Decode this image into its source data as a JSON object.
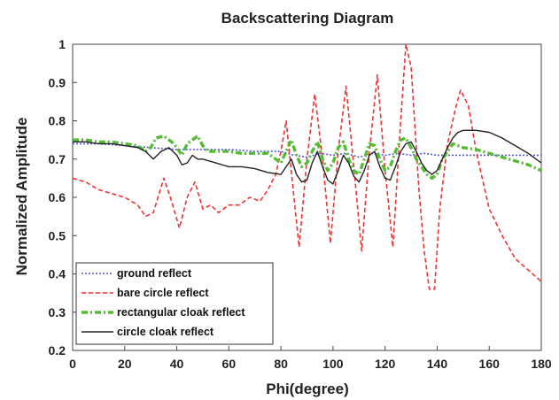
{
  "chart_data": {
    "type": "line",
    "title": "Backscattering Diagram",
    "xlabel": "Phi(degree)",
    "ylabel": "Normalized Amplitude",
    "xlim": [
      0,
      180
    ],
    "ylim": [
      0.2,
      1.0
    ],
    "xticks": [
      0,
      20,
      40,
      60,
      80,
      100,
      120,
      140,
      160,
      180
    ],
    "yticks": [
      0.2,
      0.3,
      0.4,
      0.5,
      0.6,
      0.7,
      0.8,
      0.9,
      1
    ],
    "grid": false,
    "legend_position": "bottom-left",
    "series": [
      {
        "name": "ground reflect",
        "color": "#5555dd",
        "style": "dotted",
        "x": [
          0,
          10,
          20,
          30,
          40,
          50,
          60,
          70,
          80,
          85,
          90,
          95,
          100,
          105,
          110,
          115,
          120,
          125,
          130,
          135,
          140,
          150,
          160,
          170,
          180
        ],
        "y": [
          0.74,
          0.74,
          0.735,
          0.73,
          0.725,
          0.725,
          0.725,
          0.72,
          0.72,
          0.71,
          0.705,
          0.715,
          0.71,
          0.715,
          0.705,
          0.715,
          0.71,
          0.715,
          0.71,
          0.715,
          0.71,
          0.71,
          0.71,
          0.71,
          0.71
        ]
      },
      {
        "name": "bare circle reflect",
        "color": "#ee3333",
        "style": "dashed",
        "x": [
          0,
          5,
          10,
          15,
          20,
          25,
          28,
          31,
          35,
          38,
          41,
          44,
          47,
          50,
          53,
          56,
          60,
          64,
          68,
          72,
          75,
          78,
          80,
          82,
          85,
          87,
          90,
          93,
          96,
          99,
          102,
          105,
          108,
          111,
          114,
          117,
          120,
          123,
          126,
          128,
          130,
          133,
          135,
          137,
          139,
          141,
          144,
          147,
          149,
          152,
          155,
          160,
          165,
          170,
          175,
          180
        ],
        "y": [
          0.65,
          0.64,
          0.62,
          0.61,
          0.6,
          0.58,
          0.55,
          0.56,
          0.65,
          0.59,
          0.52,
          0.6,
          0.64,
          0.57,
          0.58,
          0.56,
          0.58,
          0.58,
          0.6,
          0.59,
          0.62,
          0.66,
          0.72,
          0.8,
          0.6,
          0.47,
          0.7,
          0.87,
          0.7,
          0.48,
          0.72,
          0.89,
          0.68,
          0.46,
          0.72,
          0.92,
          0.67,
          0.47,
          0.8,
          1.0,
          0.94,
          0.62,
          0.46,
          0.36,
          0.36,
          0.57,
          0.74,
          0.83,
          0.88,
          0.84,
          0.72,
          0.57,
          0.5,
          0.44,
          0.41,
          0.38
        ]
      },
      {
        "name": "rectangular cloak reflect",
        "color": "#55bb33",
        "style": "dash-dot",
        "x": [
          0,
          5,
          10,
          15,
          20,
          25,
          28,
          30,
          32,
          35,
          38,
          40,
          42,
          44,
          46,
          48,
          50,
          52,
          55,
          60,
          65,
          70,
          75,
          78,
          80,
          82,
          84,
          86,
          88,
          90,
          92,
          94,
          96,
          98,
          100,
          102,
          104,
          106,
          108,
          110,
          112,
          114,
          116,
          118,
          120,
          122,
          124,
          126,
          128,
          130,
          132,
          134,
          136,
          138,
          140,
          142,
          144,
          146,
          148,
          150,
          155,
          160,
          165,
          170,
          175,
          180
        ],
        "y": [
          0.75,
          0.75,
          0.745,
          0.745,
          0.74,
          0.735,
          0.72,
          0.73,
          0.755,
          0.76,
          0.745,
          0.73,
          0.71,
          0.74,
          0.75,
          0.76,
          0.735,
          0.72,
          0.72,
          0.72,
          0.715,
          0.715,
          0.715,
          0.7,
          0.69,
          0.72,
          0.75,
          0.71,
          0.68,
          0.69,
          0.72,
          0.745,
          0.7,
          0.67,
          0.69,
          0.73,
          0.745,
          0.7,
          0.67,
          0.66,
          0.7,
          0.74,
          0.735,
          0.7,
          0.67,
          0.68,
          0.72,
          0.75,
          0.755,
          0.73,
          0.7,
          0.68,
          0.66,
          0.65,
          0.66,
          0.7,
          0.72,
          0.74,
          0.735,
          0.73,
          0.725,
          0.715,
          0.705,
          0.695,
          0.685,
          0.67
        ]
      },
      {
        "name": "circle cloak reflect",
        "color": "#222222",
        "style": "solid",
        "x": [
          0,
          5,
          10,
          15,
          20,
          25,
          28,
          31,
          34,
          37,
          40,
          42,
          44,
          46,
          48,
          50,
          55,
          60,
          65,
          70,
          75,
          80,
          82,
          84,
          86,
          88,
          90,
          92,
          94,
          96,
          98,
          100,
          102,
          104,
          106,
          108,
          110,
          112,
          114,
          116,
          118,
          120,
          122,
          124,
          126,
          128,
          130,
          132,
          134,
          136,
          138,
          140,
          142,
          144,
          146,
          148,
          150,
          155,
          160,
          165,
          170,
          175,
          180
        ],
        "y": [
          0.745,
          0.745,
          0.74,
          0.74,
          0.735,
          0.73,
          0.72,
          0.7,
          0.72,
          0.73,
          0.71,
          0.685,
          0.69,
          0.71,
          0.7,
          0.7,
          0.69,
          0.68,
          0.68,
          0.675,
          0.665,
          0.66,
          0.68,
          0.7,
          0.66,
          0.64,
          0.645,
          0.69,
          0.72,
          0.68,
          0.645,
          0.635,
          0.67,
          0.71,
          0.69,
          0.655,
          0.64,
          0.67,
          0.71,
          0.72,
          0.68,
          0.65,
          0.645,
          0.68,
          0.72,
          0.74,
          0.745,
          0.72,
          0.69,
          0.67,
          0.66,
          0.67,
          0.7,
          0.73,
          0.755,
          0.77,
          0.775,
          0.775,
          0.77,
          0.755,
          0.735,
          0.715,
          0.69
        ]
      }
    ]
  }
}
